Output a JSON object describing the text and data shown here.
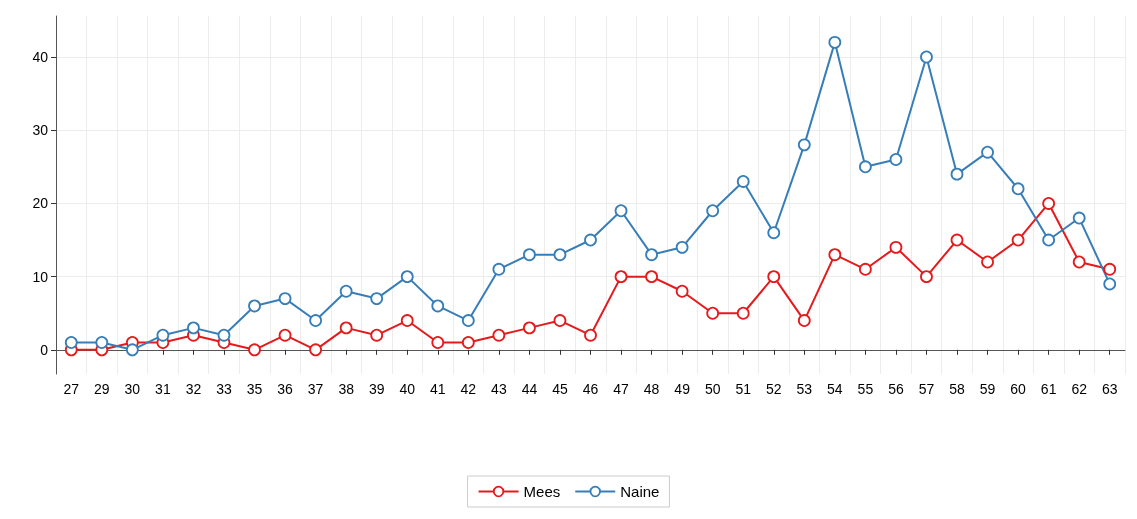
{
  "chart_data": {
    "type": "line",
    "categories": [
      "27",
      "29",
      "30",
      "31",
      "32",
      "33",
      "35",
      "36",
      "37",
      "38",
      "39",
      "40",
      "41",
      "42",
      "43",
      "44",
      "45",
      "46",
      "47",
      "48",
      "49",
      "50",
      "51",
      "52",
      "53",
      "54",
      "55",
      "56",
      "57",
      "58",
      "59",
      "60",
      "61",
      "62",
      "63"
    ],
    "series": [
      {
        "name": "Mees",
        "color": "#e41a1c",
        "values": [
          0,
          0,
          1,
          1,
          2,
          1,
          0,
          2,
          0,
          3,
          2,
          4,
          1,
          1,
          2,
          3,
          4,
          2,
          10,
          10,
          8,
          5,
          5,
          10,
          4,
          13,
          11,
          14,
          10,
          15,
          12,
          15,
          20,
          12,
          11
        ]
      },
      {
        "name": "Naine",
        "color": "#377eb8",
        "values": [
          1,
          1,
          0,
          2,
          3,
          2,
          6,
          7,
          4,
          8,
          7,
          10,
          6,
          4,
          11,
          13,
          13,
          15,
          19,
          13,
          14,
          19,
          23,
          16,
          28,
          42,
          25,
          26,
          40,
          24,
          27,
          22,
          15,
          18,
          9
        ]
      }
    ],
    "ylim": [
      -3.3,
      45.6
    ],
    "yticks": [
      0,
      10,
      20,
      30,
      40
    ],
    "grid": true,
    "legend": "bottom",
    "marker": "circle",
    "line_style": "solid"
  }
}
